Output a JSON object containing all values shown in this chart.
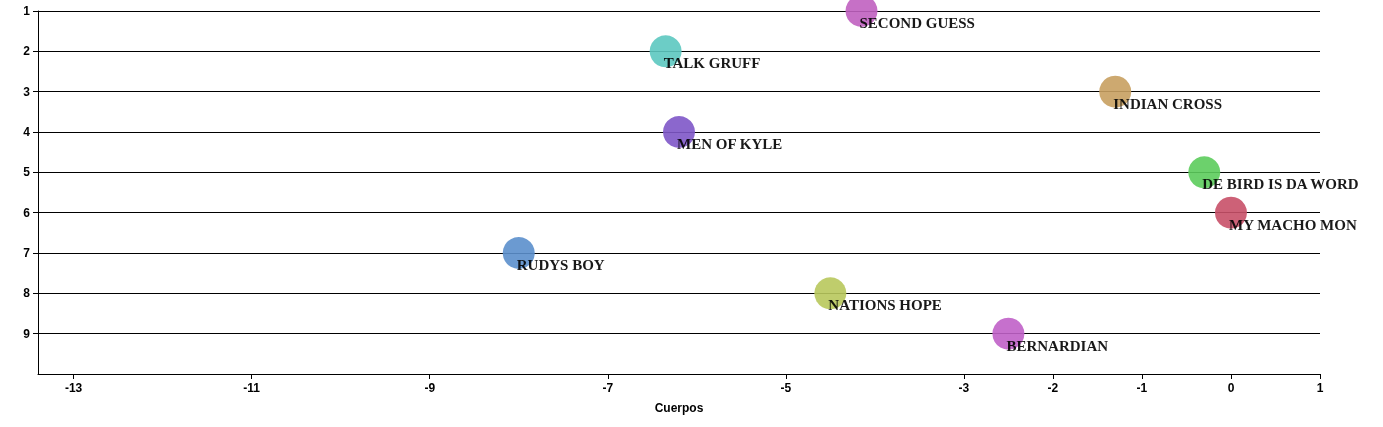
{
  "chart_data": {
    "type": "scatter",
    "xlabel": "Cuerpos",
    "xlim": [
      -13.4,
      1
    ],
    "xticks": [
      -13,
      -11,
      -9,
      -7,
      -5,
      -3,
      -2,
      -1,
      0,
      1
    ],
    "ylim": [
      10,
      1
    ],
    "yticks": [
      1,
      2,
      3,
      4,
      5,
      6,
      7,
      8,
      9
    ],
    "grid": "y",
    "legend": false,
    "marker": "circle",
    "series": [
      {
        "name": "SECOND GUESS",
        "color": "#c060c0",
        "x": [
          -4.15
        ],
        "values": [
          1
        ]
      },
      {
        "name": "TALK GRUFF",
        "color": "#5cc8c0",
        "x": [
          -6.35
        ],
        "values": [
          2
        ]
      },
      {
        "name": "INDIAN CROSS",
        "color": "#c8a060",
        "x": [
          -1.3
        ],
        "values": [
          3
        ]
      },
      {
        "name": "MEN OF KYLE",
        "color": "#7e57c8",
        "x": [
          -6.2
        ],
        "values": [
          4
        ]
      },
      {
        "name": "DE BIRD IS DA WORD",
        "color": "#5ccc5c",
        "x": [
          -0.3
        ],
        "values": [
          5
        ]
      },
      {
        "name": "MY MACHO MON",
        "color": "#c85068",
        "x": [
          0
        ],
        "values": [
          6
        ]
      },
      {
        "name": "RUDYS BOY",
        "color": "#5b8fcc",
        "x": [
          -8
        ],
        "values": [
          7
        ]
      },
      {
        "name": "NATIONS HOPE",
        "color": "#b8c85c",
        "x": [
          -4.5
        ],
        "values": [
          8
        ]
      },
      {
        "name": "BERNARDIAN",
        "color": "#c060c8",
        "x": [
          -2.5
        ],
        "values": [
          9
        ]
      }
    ]
  }
}
